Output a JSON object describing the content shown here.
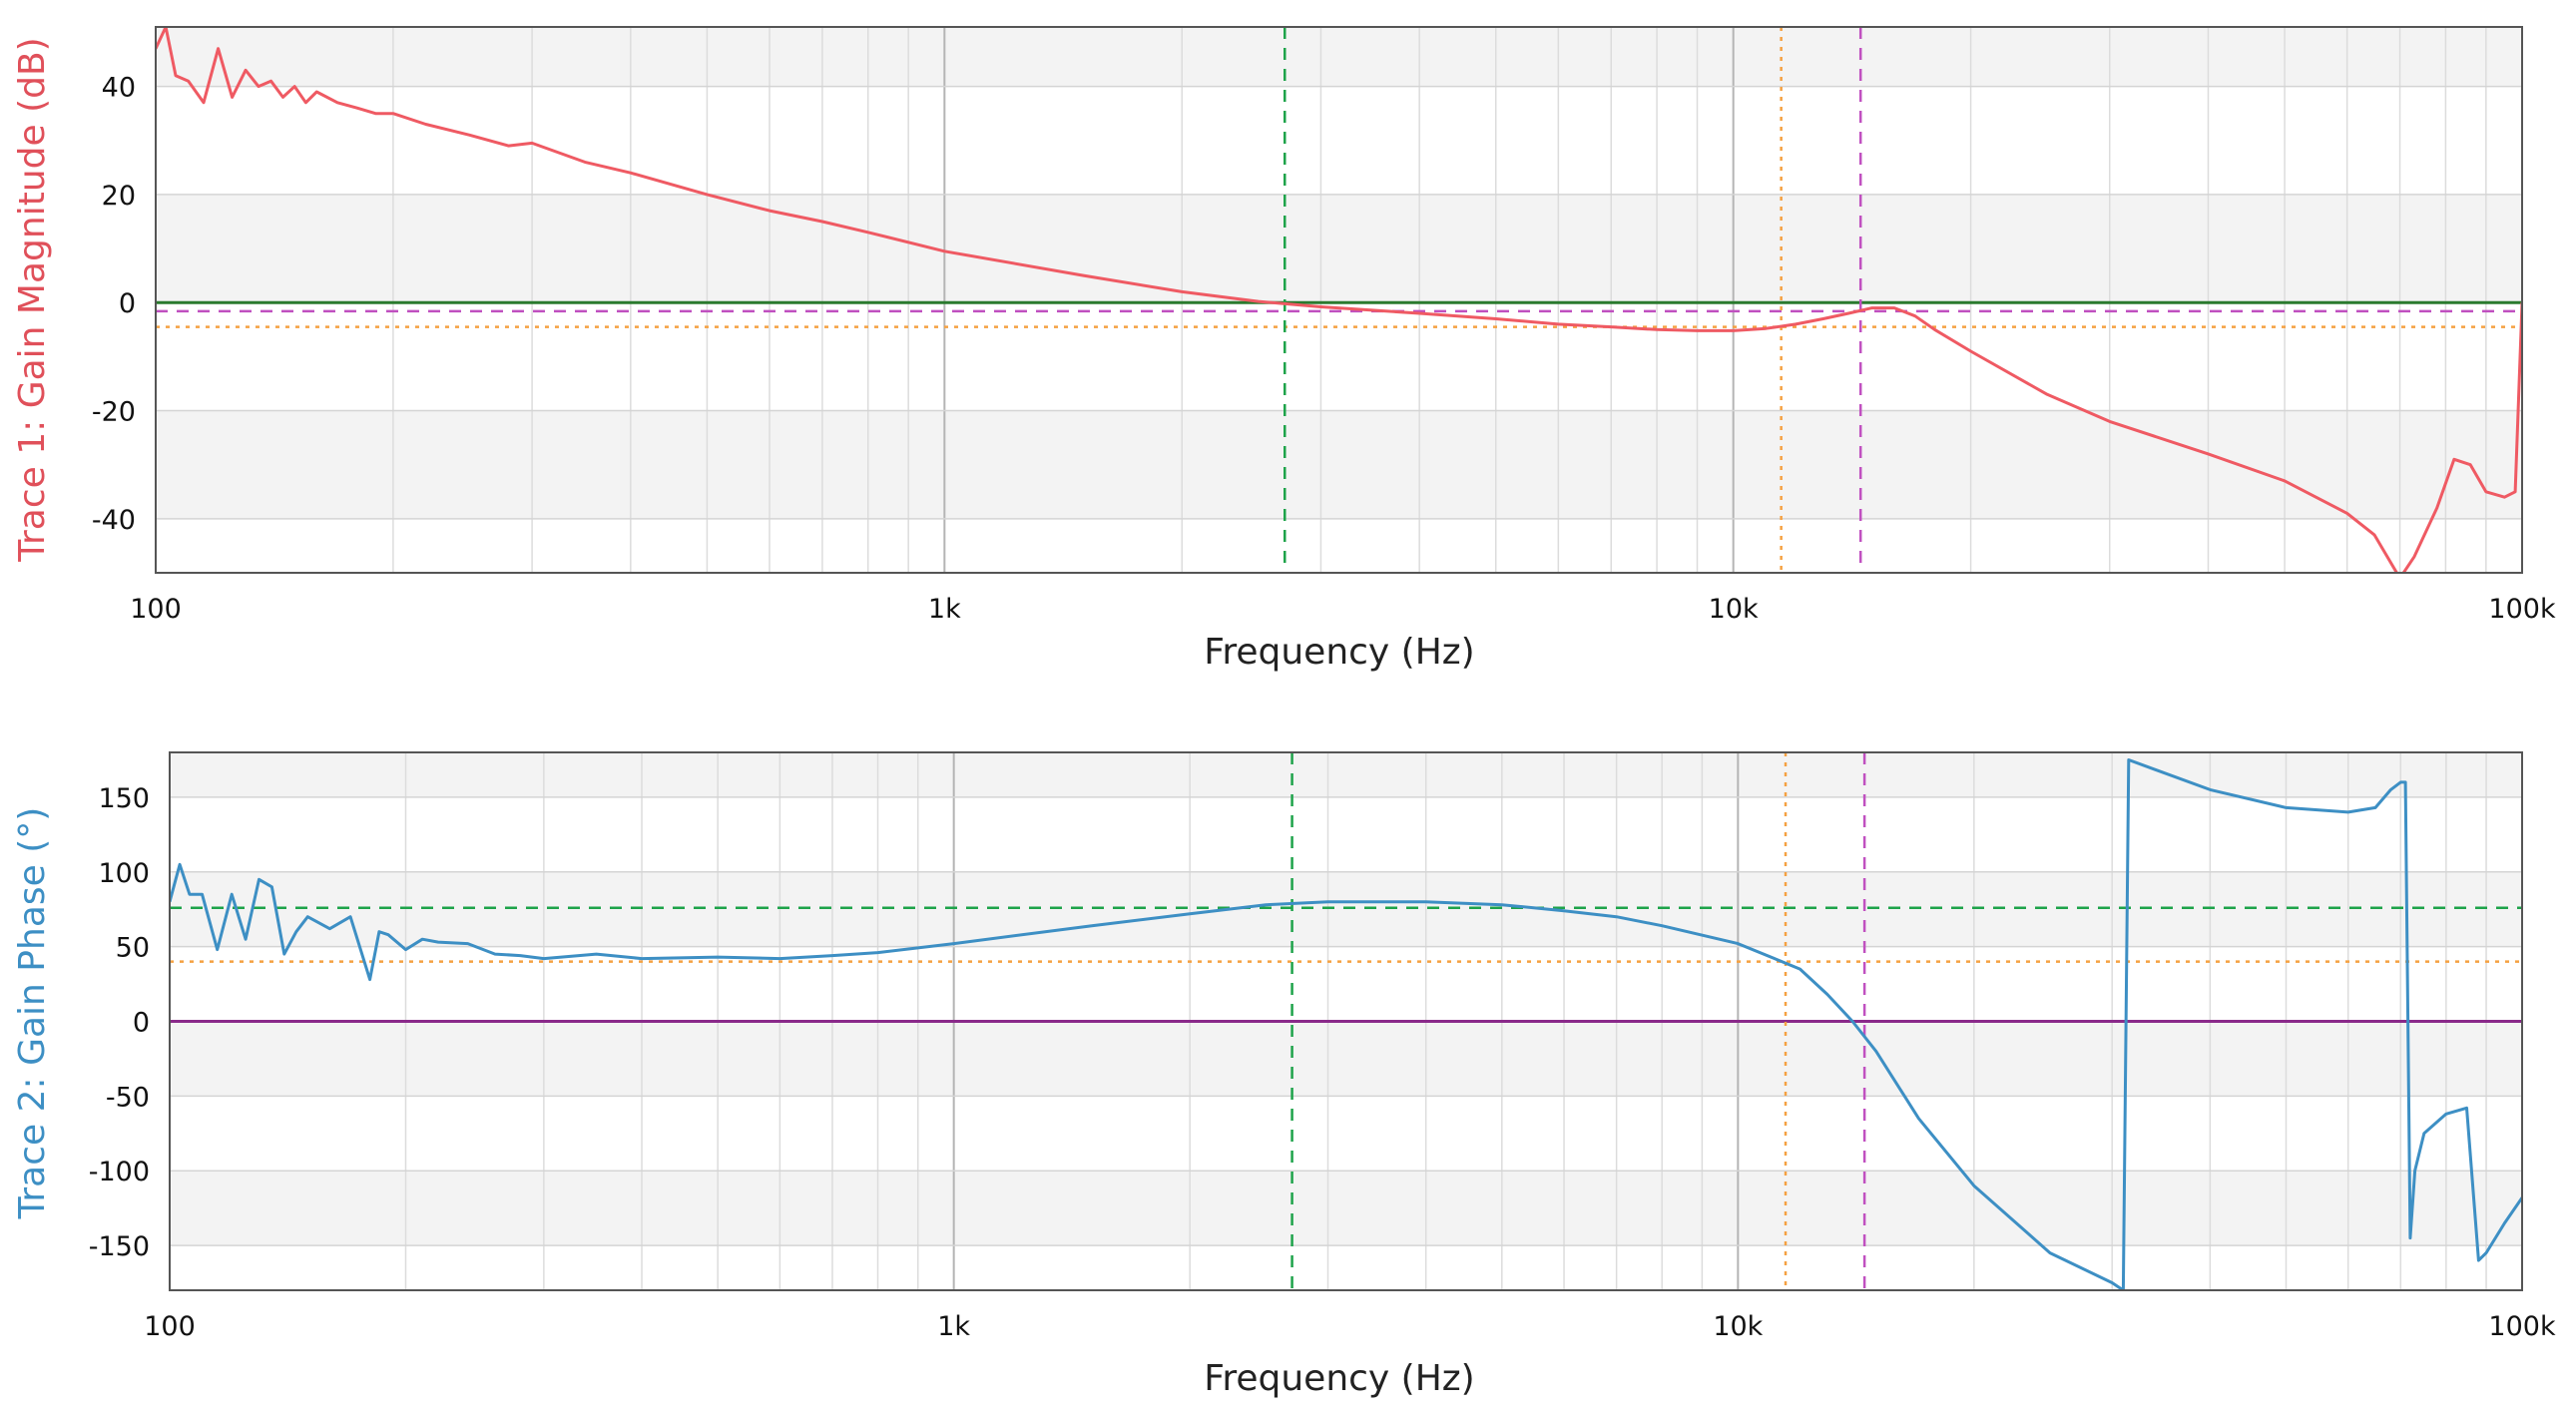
{
  "chart_data": [
    {
      "type": "line",
      "xlabel": "Frequency (Hz)",
      "ylabel": "Trace 1: Gain Magnitude (dB)",
      "x_scale": "log",
      "xlim": [
        100,
        100000
      ],
      "ylim": [
        -50,
        51
      ],
      "x_ticks": [
        {
          "value": 100,
          "label": "100"
        },
        {
          "value": 1000,
          "label": "1k"
        },
        {
          "value": 10000,
          "label": "10k"
        },
        {
          "value": 100000,
          "label": "100k"
        }
      ],
      "y_ticks": [
        {
          "value": 40,
          "label": "40"
        },
        {
          "value": 20,
          "label": "20"
        },
        {
          "value": 0,
          "label": "0"
        },
        {
          "value": -20,
          "label": "-20"
        },
        {
          "value": -40,
          "label": "-40"
        }
      ],
      "grid": true,
      "series": [
        {
          "color": "#ef5a63",
          "x": [
            100,
            103,
            106,
            110,
            115,
            120,
            125,
            130,
            135,
            140,
            145,
            150,
            155,
            160,
            170,
            180,
            190,
            200,
            220,
            250,
            280,
            300,
            350,
            400,
            500,
            600,
            700,
            800,
            1000,
            1500,
            2000,
            2500,
            3000,
            4000,
            5000,
            6000,
            7000,
            8000,
            9000,
            10000,
            11000,
            12000,
            13000,
            14000,
            15000,
            16000,
            17000,
            18000,
            20000,
            25000,
            30000,
            40000,
            50000,
            60000,
            65000,
            70000,
            73000,
            78000,
            82000,
            86000,
            90000,
            95000,
            98000,
            100000
          ],
          "y": [
            47,
            51,
            42,
            41,
            37,
            47,
            38,
            43,
            40,
            41,
            38,
            40,
            37,
            39,
            37,
            36,
            35,
            35,
            33,
            31,
            29,
            29.5,
            26,
            24,
            20,
            17,
            15,
            13,
            9.5,
            5,
            2,
            0.2,
            -0.8,
            -2,
            -3,
            -4,
            -4.5,
            -5,
            -5.2,
            -5.2,
            -4.8,
            -4,
            -3,
            -2,
            -1,
            -1,
            -2.5,
            -5,
            -9,
            -17,
            -22,
            -28,
            -33,
            -39,
            -43,
            -51,
            -47,
            -38,
            -29,
            -30,
            -35,
            -36,
            -35,
            0
          ]
        }
      ],
      "reference_lines": [
        {
          "orientation": "horizontal",
          "value": 0,
          "color": "#2a7a2e",
          "style": "solid"
        },
        {
          "orientation": "horizontal",
          "value": -1.6,
          "color": "#c050c0",
          "style": "dashed"
        },
        {
          "orientation": "horizontal",
          "value": -4.5,
          "color": "#f5a142",
          "style": "dotted"
        },
        {
          "orientation": "vertical",
          "value": 2700,
          "color": "#1ea34a",
          "style": "dashed"
        },
        {
          "orientation": "vertical",
          "value": 11500,
          "color": "#f5a142",
          "style": "dotted"
        },
        {
          "orientation": "vertical",
          "value": 14500,
          "color": "#c050c0",
          "style": "dashed"
        }
      ]
    },
    {
      "type": "line",
      "xlabel": "Frequency (Hz)",
      "ylabel": "Trace 2: Gain Phase (°)",
      "x_scale": "log",
      "xlim": [
        100,
        100000
      ],
      "ylim": [
        -180,
        180
      ],
      "x_ticks": [
        {
          "value": 100,
          "label": "100"
        },
        {
          "value": 1000,
          "label": "1k"
        },
        {
          "value": 10000,
          "label": "10k"
        },
        {
          "value": 100000,
          "label": "100k"
        }
      ],
      "y_ticks": [
        {
          "value": 150,
          "label": "150"
        },
        {
          "value": 100,
          "label": "100"
        },
        {
          "value": 50,
          "label": "50"
        },
        {
          "value": 0,
          "label": "0"
        },
        {
          "value": -50,
          "label": "-50"
        },
        {
          "value": -100,
          "label": "-100"
        },
        {
          "value": -150,
          "label": "-150"
        }
      ],
      "grid": true,
      "series": [
        {
          "color": "#3d8fc4",
          "x": [
            100,
            103,
            106,
            110,
            115,
            120,
            125,
            130,
            135,
            140,
            145,
            150,
            160,
            170,
            180,
            185,
            190,
            200,
            210,
            220,
            240,
            260,
            280,
            300,
            350,
            400,
            500,
            600,
            700,
            800,
            1000,
            1500,
            2000,
            2500,
            3000,
            4000,
            5000,
            6000,
            7000,
            8000,
            10000,
            12000,
            13000,
            14000,
            15000,
            17000,
            20000,
            25000,
            30000,
            31000,
            31500,
            40000,
            50000,
            60000,
            65000,
            68000,
            70000,
            71000,
            72000,
            73000,
            75000,
            80000,
            85000,
            88000,
            90000,
            95000,
            100000
          ],
          "y": [
            80,
            105,
            85,
            85,
            48,
            85,
            55,
            95,
            90,
            45,
            60,
            70,
            62,
            70,
            28,
            60,
            58,
            48,
            55,
            53,
            52,
            45,
            44,
            42,
            45,
            42,
            43,
            42,
            44,
            46,
            52,
            64,
            72,
            78,
            80,
            80,
            78,
            74,
            70,
            64,
            52,
            35,
            18,
            0,
            -20,
            -65,
            -110,
            -155,
            -175,
            -180,
            175,
            155,
            143,
            140,
            143,
            155,
            160,
            160,
            -145,
            -100,
            -75,
            -62,
            -58,
            -160,
            -155,
            -135,
            -118
          ]
        }
      ],
      "reference_lines": [
        {
          "orientation": "horizontal",
          "value": 76,
          "color": "#1ea34a",
          "style": "dashed"
        },
        {
          "orientation": "horizontal",
          "value": 40,
          "color": "#f5a142",
          "style": "dotted"
        },
        {
          "orientation": "horizontal",
          "value": 0,
          "color": "#8a2a8a",
          "style": "solid"
        },
        {
          "orientation": "vertical",
          "value": 2700,
          "color": "#1ea34a",
          "style": "dashed"
        },
        {
          "orientation": "vertical",
          "value": 11500,
          "color": "#f5a142",
          "style": "dotted"
        },
        {
          "orientation": "vertical",
          "value": 14500,
          "color": "#c050c0",
          "style": "dashed"
        }
      ]
    }
  ]
}
